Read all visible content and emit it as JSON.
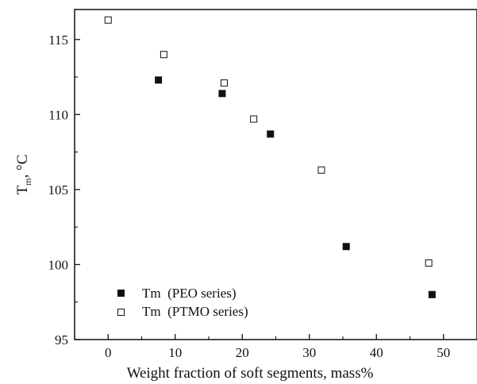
{
  "chart_data": {
    "type": "scatter",
    "title": "",
    "xlabel": "Weight fraction of soft segments, mass%",
    "ylabel": {
      "main": "T",
      "sub": "m",
      "unit": ", °C"
    },
    "xlim": [
      -5,
      55
    ],
    "ylim": [
      95,
      117
    ],
    "x_ticks": [
      0,
      10,
      20,
      30,
      40,
      50
    ],
    "y_ticks": [
      95,
      100,
      105,
      110,
      115
    ],
    "grid": false,
    "legend_position": "bottom-left",
    "series": [
      {
        "name": "Tm  (PEO series)",
        "marker": "filled-square",
        "color": "#111111",
        "points": [
          {
            "x": 7.5,
            "y": 112.3
          },
          {
            "x": 17.0,
            "y": 111.4
          },
          {
            "x": 24.2,
            "y": 108.7
          },
          {
            "x": 35.5,
            "y": 101.2
          },
          {
            "x": 48.3,
            "y": 98.0
          }
        ]
      },
      {
        "name": "Tm  (PTMO series)",
        "marker": "open-square",
        "color": "#111111",
        "points": [
          {
            "x": 0.0,
            "y": 116.3
          },
          {
            "x": 8.3,
            "y": 114.0
          },
          {
            "x": 17.3,
            "y": 112.1
          },
          {
            "x": 21.7,
            "y": 109.7
          },
          {
            "x": 31.8,
            "y": 106.3
          },
          {
            "x": 47.8,
            "y": 100.1
          }
        ]
      }
    ]
  }
}
